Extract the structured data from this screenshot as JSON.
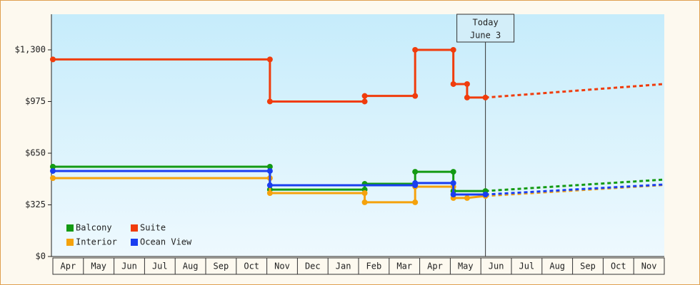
{
  "chart_data": {
    "type": "step-line",
    "categories": [
      "Apr",
      "May",
      "Jun",
      "Jul",
      "Aug",
      "Sep",
      "Oct",
      "Nov",
      "Dec",
      "Jan",
      "Feb",
      "Mar",
      "Apr",
      "May",
      "Jun",
      "Jul",
      "Aug",
      "Sep",
      "Oct",
      "Nov"
    ],
    "xlim": [
      0,
      20
    ],
    "ylim": [
      0,
      1524
    ],
    "yticks": [
      {
        "value": 0,
        "label": "$0"
      },
      {
        "value": 325,
        "label": "$325"
      },
      {
        "value": 650,
        "label": "$650"
      },
      {
        "value": 975,
        "label": "$975"
      },
      {
        "value": 1300,
        "label": "$1,300"
      }
    ],
    "today": {
      "x": 14.15,
      "label": [
        "Today",
        "June 3"
      ]
    },
    "legend": "lower-left",
    "series": [
      {
        "name": "Balcony",
        "color": "#139a13",
        "x": [
          0,
          7.1,
          7.1,
          10.2,
          10.2,
          11.85,
          11.85,
          13.1,
          13.1,
          14.15
        ],
        "values": [
          565,
          565,
          421,
          421,
          457,
          457,
          533,
          533,
          412,
          412
        ],
        "forecast_x": [
          14.15,
          20
        ],
        "forecast_values": [
          412,
          484
        ]
      },
      {
        "name": "Suite",
        "color": "#f03c0c",
        "x": [
          0,
          7.1,
          7.1,
          10.2,
          10.2,
          11.85,
          11.85,
          13.1,
          13.1,
          13.55,
          13.55,
          14.15
        ],
        "values": [
          1240,
          1240,
          975,
          975,
          1010,
          1010,
          1300,
          1300,
          1085,
          1085,
          1000,
          1000
        ],
        "forecast_x": [
          14.15,
          20
        ],
        "forecast_values": [
          1000,
          1085
        ]
      },
      {
        "name": "Interior",
        "color": "#f5a20c",
        "x": [
          0,
          7.1,
          7.1,
          10.2,
          10.2,
          11.85,
          11.85,
          13.1,
          13.1,
          13.55,
          14.15
        ],
        "values": [
          493,
          493,
          399,
          399,
          341,
          341,
          439,
          439,
          368,
          368,
          381
        ],
        "forecast_x": [
          14.15,
          20
        ],
        "forecast_values": [
          381,
          450
        ]
      },
      {
        "name": "Ocean View",
        "color": "#1a3ef0",
        "x": [
          0,
          7.1,
          7.1,
          11.85,
          11.85,
          13.1,
          13.1,
          14.15
        ],
        "values": [
          538,
          538,
          448,
          448,
          462,
          462,
          390,
          390
        ],
        "forecast_x": [
          14.15,
          20
        ],
        "forecast_values": [
          390,
          453
        ]
      }
    ]
  }
}
